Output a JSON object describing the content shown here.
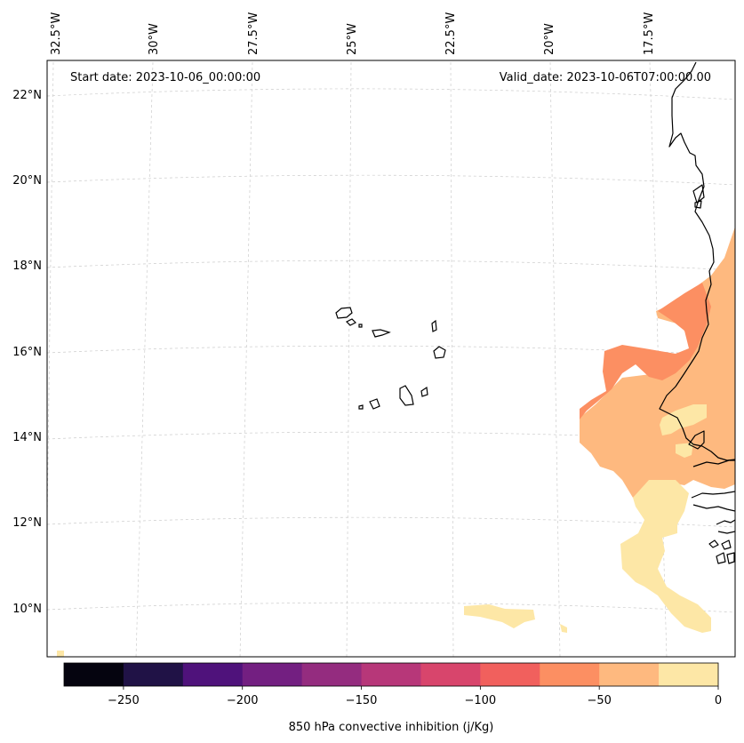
{
  "map": {
    "start_date": "Start date: 2023-10-06_00:00:00",
    "valid_date": "Valid_date: 2023-10-06T07:00:00.00",
    "lon_labels": [
      "32.5°W",
      "30°W",
      "27.5°W",
      "25°W",
      "22.5°W",
      "20°W",
      "17.5°W"
    ],
    "lat_labels": [
      "22°N",
      "20°N",
      "18°N",
      "16°N",
      "14°N",
      "12°N",
      "10°N"
    ],
    "gridlines": true,
    "coastline_color": "#000000",
    "fill_colors": {
      "-50_-25": "#feb97f",
      "-75_-50": "#fc8f62",
      "-25_0": "#fde7a6"
    }
  },
  "colorbar": {
    "label": "850 hPa convective inhibition (j/Kg)",
    "ticks": [
      "−250",
      "−200",
      "−150",
      "−100",
      "−50",
      "0"
    ],
    "levels": [
      -275,
      -250,
      -225,
      -200,
      -175,
      -150,
      -125,
      -100,
      -75,
      -50,
      -25,
      0
    ],
    "colors": [
      "#05040f",
      "#201246",
      "#4f127b",
      "#731f81",
      "#942c7f",
      "#b73779",
      "#d8456c",
      "#f1605d",
      "#fc8f62",
      "#feb97f",
      "#fde7a6"
    ]
  }
}
